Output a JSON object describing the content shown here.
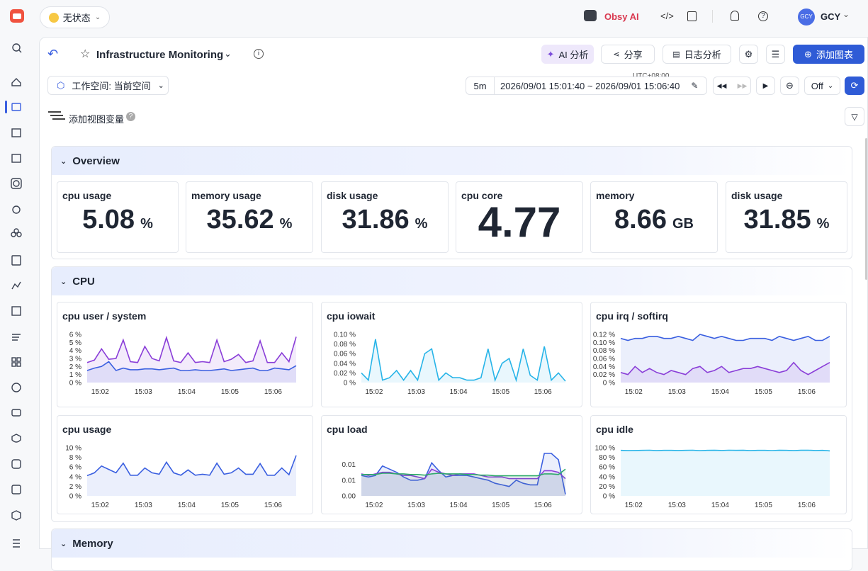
{
  "topbar": {
    "status": "无状态",
    "ai": "Obsy AI",
    "avatar": "GCY",
    "user": "GCY"
  },
  "header": {
    "title": "Infrastructure Monitoring",
    "ai_button": "AI 分析",
    "share_button": "分享",
    "log_button": "日志分析",
    "add_button": "添加图表"
  },
  "toolbar": {
    "workspace": "工作空间: 当前空间",
    "range": "5m",
    "timezone": "UTC+08:00",
    "time": "2026/09/01 15:01:40 ~ 2026/09/01 15:06:40",
    "refresh": "Off",
    "variables": "添加视图变量"
  },
  "overview": {
    "title": "Overview",
    "stats": [
      {
        "title": "cpu usage",
        "value": 5.08,
        "unit": "%"
      },
      {
        "title": "memory usage",
        "value": 35.62,
        "unit": "%"
      },
      {
        "title": "disk usage",
        "value": 31.86,
        "unit": "%"
      },
      {
        "title": "cpu core",
        "value": 4.77
      },
      {
        "title": "memory",
        "value": 8.66,
        "unit": "GB"
      },
      {
        "title": "disk usage",
        "value": 31.85,
        "unit": "%"
      }
    ]
  },
  "time_axis": {
    "xlim": [
      0,
      29
    ],
    "xticks": [
      {
        "value": 1.8,
        "label": "15:02"
      },
      {
        "value": 7.8,
        "label": "15:03"
      },
      {
        "value": 13.8,
        "label": "15:04"
      },
      {
        "value": 19.8,
        "label": "15:05"
      },
      {
        "value": 25.8,
        "label": "15:06"
      }
    ]
  },
  "cpu": {
    "title": "CPU",
    "charts": [
      {
        "type": "line",
        "title": "cpu user / system",
        "ylim": [
          0,
          6
        ],
        "yticks": [
          {
            "value": 0,
            "label": "0 %"
          },
          {
            "value": 1,
            "label": "1 %"
          },
          {
            "value": 2,
            "label": "2 %"
          },
          {
            "value": 3,
            "label": "3 %"
          },
          {
            "value": 4,
            "label": "4 %"
          },
          {
            "value": 5,
            "label": "5 %"
          },
          {
            "value": 6,
            "label": "6 %"
          }
        ],
        "series": [
          {
            "color": "#8a3ed8",
            "values": [
              2.5,
              2.8,
              4.2,
              2.9,
              3.0,
              5.3,
              2.6,
              2.5,
              4.5,
              3.0,
              2.7,
              5.6,
              2.7,
              2.5,
              3.7,
              2.5,
              2.6,
              2.5,
              5.3,
              2.6,
              2.9,
              3.5,
              2.5,
              2.7,
              5.2,
              2.5,
              2.5,
              3.7,
              2.6,
              5.7
            ]
          },
          {
            "color": "#3a5fe0",
            "values": [
              1.5,
              1.8,
              2.0,
              2.6,
              1.5,
              1.8,
              1.6,
              1.6,
              1.7,
              1.7,
              1.6,
              1.7,
              1.8,
              1.5,
              1.5,
              1.6,
              1.5,
              1.5,
              1.6,
              1.7,
              1.5,
              1.6,
              1.7,
              1.8,
              1.5,
              1.5,
              1.8,
              1.7,
              1.6,
              2.1
            ]
          }
        ]
      },
      {
        "type": "line",
        "title": "cpu iowait",
        "ylim": [
          0,
          0.1
        ],
        "yticks": [
          {
            "value": 0,
            "label": "0 %"
          },
          {
            "value": 0.02,
            "label": "0.02 %"
          },
          {
            "value": 0.04,
            "label": "0.04 %"
          },
          {
            "value": 0.06,
            "label": "0.06 %"
          },
          {
            "value": 0.08,
            "label": "0.08 %"
          },
          {
            "value": 0.1,
            "label": "0.10 %"
          }
        ],
        "series": [
          {
            "color": "#27b4e8",
            "values": [
              0.02,
              0.005,
              0.09,
              0.005,
              0.01,
              0.025,
              0.005,
              0.025,
              0.005,
              0.06,
              0.07,
              0.005,
              0.02,
              0.01,
              0.01,
              0.005,
              0.005,
              0.01,
              0.07,
              0.005,
              0.04,
              0.05,
              0.005,
              0.07,
              0.015,
              0.005,
              0.075,
              0.005,
              0.02,
              0.003
            ]
          }
        ]
      },
      {
        "type": "line",
        "title": "cpu irq / softirq",
        "ylim": [
          0,
          0.12
        ],
        "yticks": [
          {
            "value": 0,
            "label": "0 %"
          },
          {
            "value": 0.02,
            "label": "0.02 %"
          },
          {
            "value": 0.04,
            "label": "0.04 %"
          },
          {
            "value": 0.06,
            "label": "0.06 %"
          },
          {
            "value": 0.08,
            "label": "0.08 %"
          },
          {
            "value": 0.1,
            "label": "0.10 %"
          },
          {
            "value": 0.12,
            "label": "0.12 %"
          }
        ],
        "series": [
          {
            "color": "#3a5fe0",
            "values": [
              0.11,
              0.105,
              0.11,
              0.11,
              0.115,
              0.115,
              0.11,
              0.11,
              0.115,
              0.11,
              0.105,
              0.12,
              0.115,
              0.11,
              0.115,
              0.11,
              0.105,
              0.105,
              0.11,
              0.11,
              0.11,
              0.105,
              0.115,
              0.11,
              0.105,
              0.11,
              0.115,
              0.105,
              0.105,
              0.115
            ]
          },
          {
            "color": "#8a3ed8",
            "values": [
              0.025,
              0.02,
              0.04,
              0.025,
              0.035,
              0.025,
              0.02,
              0.03,
              0.025,
              0.02,
              0.035,
              0.04,
              0.025,
              0.03,
              0.04,
              0.025,
              0.03,
              0.035,
              0.035,
              0.04,
              0.035,
              0.03,
              0.025,
              0.03,
              0.05,
              0.03,
              0.02,
              0.03,
              0.04,
              0.05
            ]
          }
        ]
      },
      {
        "type": "line",
        "title": "cpu usage",
        "ylim": [
          0,
          10
        ],
        "yticks": [
          {
            "value": 0,
            "label": "0 %"
          },
          {
            "value": 2,
            "label": "2 %"
          },
          {
            "value": 4,
            "label": "4 %"
          },
          {
            "value": 6,
            "label": "6 %"
          },
          {
            "value": 8,
            "label": "8 %"
          },
          {
            "value": 10,
            "label": "10 %"
          }
        ],
        "series": [
          {
            "color": "#3a5fe0",
            "values": [
              4.2,
              4.8,
              6.2,
              5.5,
              4.8,
              6.8,
              4.3,
              4.3,
              5.8,
              4.8,
              4.5,
              7.0,
              4.8,
              4.3,
              5.4,
              4.3,
              4.5,
              4.3,
              6.8,
              4.5,
              4.8,
              5.8,
              4.5,
              4.5,
              6.7,
              4.3,
              4.3,
              5.8,
              4.4,
              8.4
            ]
          }
        ]
      },
      {
        "type": "line",
        "title": "cpu load",
        "ylim": [
          0,
          0.0153
        ],
        "yticks": [
          {
            "value": 0,
            "label": "0.00"
          },
          {
            "value": 0.005,
            "label": "0.01"
          },
          {
            "value": 0.01,
            "label": "0.01"
          }
        ],
        "series": [
          {
            "color": "#3a5fe0",
            "values": [
              0.0065,
              0.006,
              0.0065,
              0.0095,
              0.0085,
              0.0075,
              0.006,
              0.005,
              0.005,
              0.0055,
              0.0105,
              0.008,
              0.006,
              0.0065,
              0.0065,
              0.0065,
              0.006,
              0.0055,
              0.005,
              0.004,
              0.0035,
              0.003,
              0.005,
              0.004,
              0.0035,
              0.0035,
              0.0135,
              0.0135,
              0.0115,
              0.0005
            ]
          },
          {
            "color": "#8a3ed8",
            "values": [
              0.007,
              0.0065,
              0.007,
              0.0075,
              0.0075,
              0.007,
              0.0065,
              0.0065,
              0.006,
              0.0055,
              0.0085,
              0.0075,
              0.007,
              0.0065,
              0.007,
              0.007,
              0.007,
              0.0065,
              0.006,
              0.006,
              0.006,
              0.0055,
              0.0055,
              0.0055,
              0.0055,
              0.0055,
              0.008,
              0.008,
              0.0075,
              0.0055
            ]
          },
          {
            "color": "#2faa6a",
            "values": [
              0.0068,
              0.0068,
              0.0068,
              0.0072,
              0.0072,
              0.007,
              0.007,
              0.0068,
              0.0068,
              0.0066,
              0.007,
              0.0072,
              0.007,
              0.007,
              0.007,
              0.0068,
              0.0068,
              0.0066,
              0.0066,
              0.0064,
              0.0064,
              0.0064,
              0.0064,
              0.0064,
              0.0064,
              0.0064,
              0.007,
              0.007,
              0.0068,
              0.0085
            ]
          }
        ]
      },
      {
        "type": "line",
        "title": "cpu idle",
        "ylim": [
          0,
          100
        ],
        "yticks": [
          {
            "value": 0,
            "label": "0 %"
          },
          {
            "value": 20,
            "label": "20 %"
          },
          {
            "value": 40,
            "label": "40 %"
          },
          {
            "value": 60,
            "label": "60 %"
          },
          {
            "value": 80,
            "label": "80 %"
          },
          {
            "value": 100,
            "label": "100 %"
          }
        ],
        "series": [
          {
            "color": "#27b4e8",
            "values": [
              94.5,
              94,
              94.2,
              94.5,
              94.8,
              94,
              94.6,
              94.5,
              94.2,
              94.6,
              94.8,
              93.8,
              94.6,
              94.7,
              94.3,
              94.8,
              94.6,
              94.7,
              94,
              94.6,
              94.5,
              94.1,
              94.7,
              94.6,
              94,
              94.7,
              94.8,
              94.2,
              94.6,
              93.5
            ]
          }
        ]
      }
    ]
  },
  "memory": {
    "title": "Memory"
  }
}
